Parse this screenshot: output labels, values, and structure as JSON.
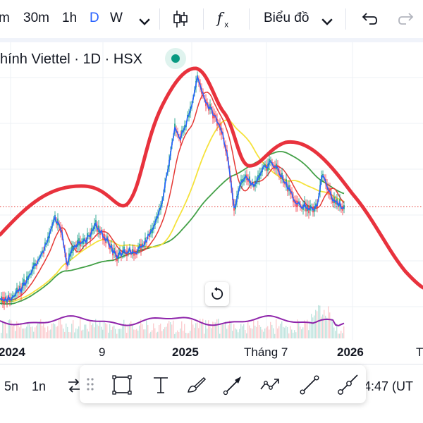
{
  "toolbar": {
    "intervals": [
      "m",
      "30m",
      "1h",
      "D",
      "W"
    ],
    "active_interval": "D",
    "interval_dropdown_icon": "chevron-down-icon",
    "chart_type_icon": "candlestick-icon",
    "indicators_icon": "function-fx-icon",
    "layout_label": "Biểu đồ",
    "layout_dropdown_icon": "chevron-down-icon",
    "undo_icon": "undo-icon",
    "redo_icon": "redo-icon"
  },
  "chart": {
    "symbol_title": "hính Viettel · 1D · HSX",
    "status": "market-open-green-dot",
    "reset_icon": "reset-rotate-icon",
    "colors": {
      "drawing_curve": "#e8323d",
      "price_line": "#2962ff",
      "ma_short": "#e53935",
      "ma_medium": "#f5e23b",
      "ma_long": "#43a047",
      "volume_line": "#8e24aa",
      "price_marker": "#e53935"
    }
  },
  "time_axis": {
    "labels": [
      "2024",
      "9",
      "2025",
      "Tháng 7",
      "2026",
      "T"
    ]
  },
  "bottom_bar": {
    "ranges": [
      "5n",
      "1n"
    ],
    "compare_icon": "compare-arrows-icon",
    "clock": "4:47 (UT"
  },
  "drawing_toolbar": {
    "grip_icon": "drag-handle-icon",
    "tools": [
      "rectangle-icon",
      "text-icon",
      "brush-icon",
      "arrow-icon",
      "path-icon",
      "trendline-icon",
      "ray-icon"
    ]
  }
}
